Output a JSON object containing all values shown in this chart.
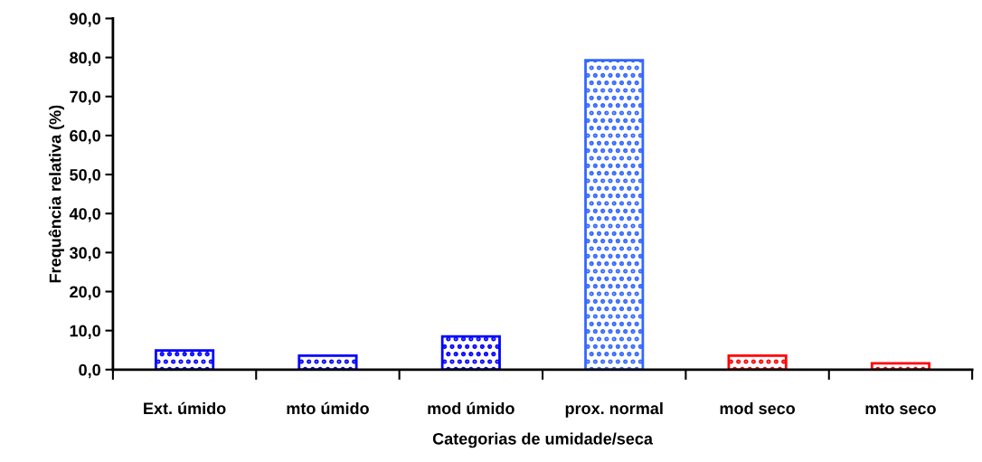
{
  "chart_data": {
    "type": "bar",
    "xlabel": "Categorias de umidade/seca",
    "ylabel": "Frequência relativa (%)",
    "categories": [
      "Ext. úmido",
      "mto úmido",
      "mod úmido",
      "prox. normal",
      "mod seco",
      "mto seco"
    ],
    "values": [
      4.9,
      3.6,
      8.5,
      79.3,
      3.6,
      1.6
    ],
    "colors": [
      "#0000ff",
      "#0000ff",
      "#0000ff",
      "#3366ff",
      "#ff0000",
      "#ff0000"
    ],
    "ylim": [
      0,
      90
    ],
    "yticks": [
      {
        "value": 0,
        "label": "0,0"
      },
      {
        "value": 10,
        "label": "10,0"
      },
      {
        "value": 20,
        "label": "20,0"
      },
      {
        "value": 30,
        "label": "30,0"
      },
      {
        "value": 40,
        "label": "40,0"
      },
      {
        "value": 50,
        "label": "50,0"
      },
      {
        "value": 60,
        "label": "60,0"
      },
      {
        "value": 70,
        "label": "70,0"
      },
      {
        "value": 80,
        "label": "80,0"
      },
      {
        "value": 90,
        "label": "90,0"
      }
    ],
    "grid": false,
    "legend": false
  }
}
